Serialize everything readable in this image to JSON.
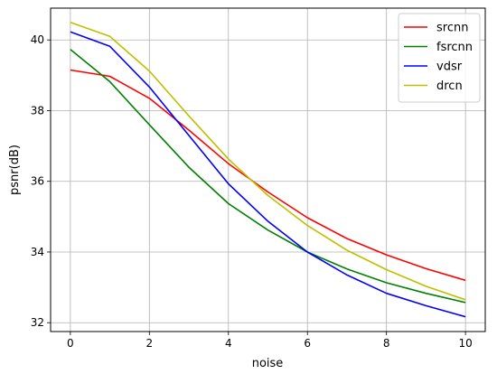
{
  "chart_data": {
    "type": "line",
    "xlabel": "noise",
    "ylabel": "psnr(dB)",
    "xlim": [
      -0.5,
      10.5
    ],
    "ylim": [
      31.75,
      40.9
    ],
    "xticks": [
      0,
      2,
      4,
      6,
      8,
      10
    ],
    "yticks": [
      32,
      34,
      36,
      38,
      40
    ],
    "grid": true,
    "legend_position": "top-right",
    "x": [
      0,
      1,
      2,
      3,
      4,
      5,
      6,
      7,
      8,
      9,
      10
    ],
    "series": [
      {
        "name": "srcnn",
        "color": "#ff0000",
        "values": [
          39.15,
          38.97,
          38.35,
          37.45,
          36.5,
          35.7,
          34.97,
          34.38,
          33.92,
          33.53,
          33.2
        ]
      },
      {
        "name": "fsrcnn",
        "color": "#008000",
        "values": [
          39.73,
          38.82,
          37.6,
          36.4,
          35.37,
          34.62,
          34.0,
          33.52,
          33.13,
          32.83,
          32.57
        ]
      },
      {
        "name": "vdsr",
        "color": "#0000ff",
        "values": [
          40.23,
          39.82,
          38.67,
          37.3,
          35.93,
          34.87,
          34.0,
          33.35,
          32.83,
          32.48,
          32.17
        ]
      },
      {
        "name": "drcn",
        "color": "#bfbf00",
        "values": [
          40.5,
          40.1,
          39.12,
          37.85,
          36.63,
          35.6,
          34.75,
          34.05,
          33.5,
          33.03,
          32.65
        ]
      }
    ]
  }
}
